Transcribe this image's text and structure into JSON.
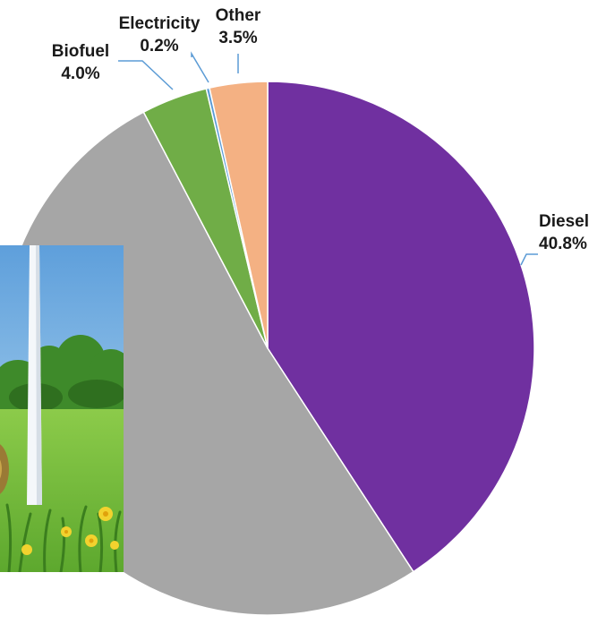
{
  "chart_data": {
    "type": "pie",
    "title": "",
    "start_angle_deg": 0,
    "direction": "clockwise",
    "slices": [
      {
        "label": "Diesel",
        "value": 40.8,
        "value_label": "40.8%",
        "color": "#7030A0"
      },
      {
        "label": "",
        "value": 51.5,
        "value_label": "",
        "color": "#A6A6A6"
      },
      {
        "label": "Biofuel",
        "value": 4.0,
        "value_label": "4.0%",
        "color": "#70AD47"
      },
      {
        "label": "Electricity",
        "value": 0.2,
        "value_label": "0.2%",
        "color": "#5B9BD5"
      },
      {
        "label": "Other",
        "value": 3.5,
        "value_label": "3.5%",
        "color": "#F4B183"
      }
    ],
    "legend": "none",
    "leader_line_color": "#5B9BD5"
  },
  "overlay_image": {
    "description_icon": "wind-turbine-meadow-photo-icon"
  }
}
